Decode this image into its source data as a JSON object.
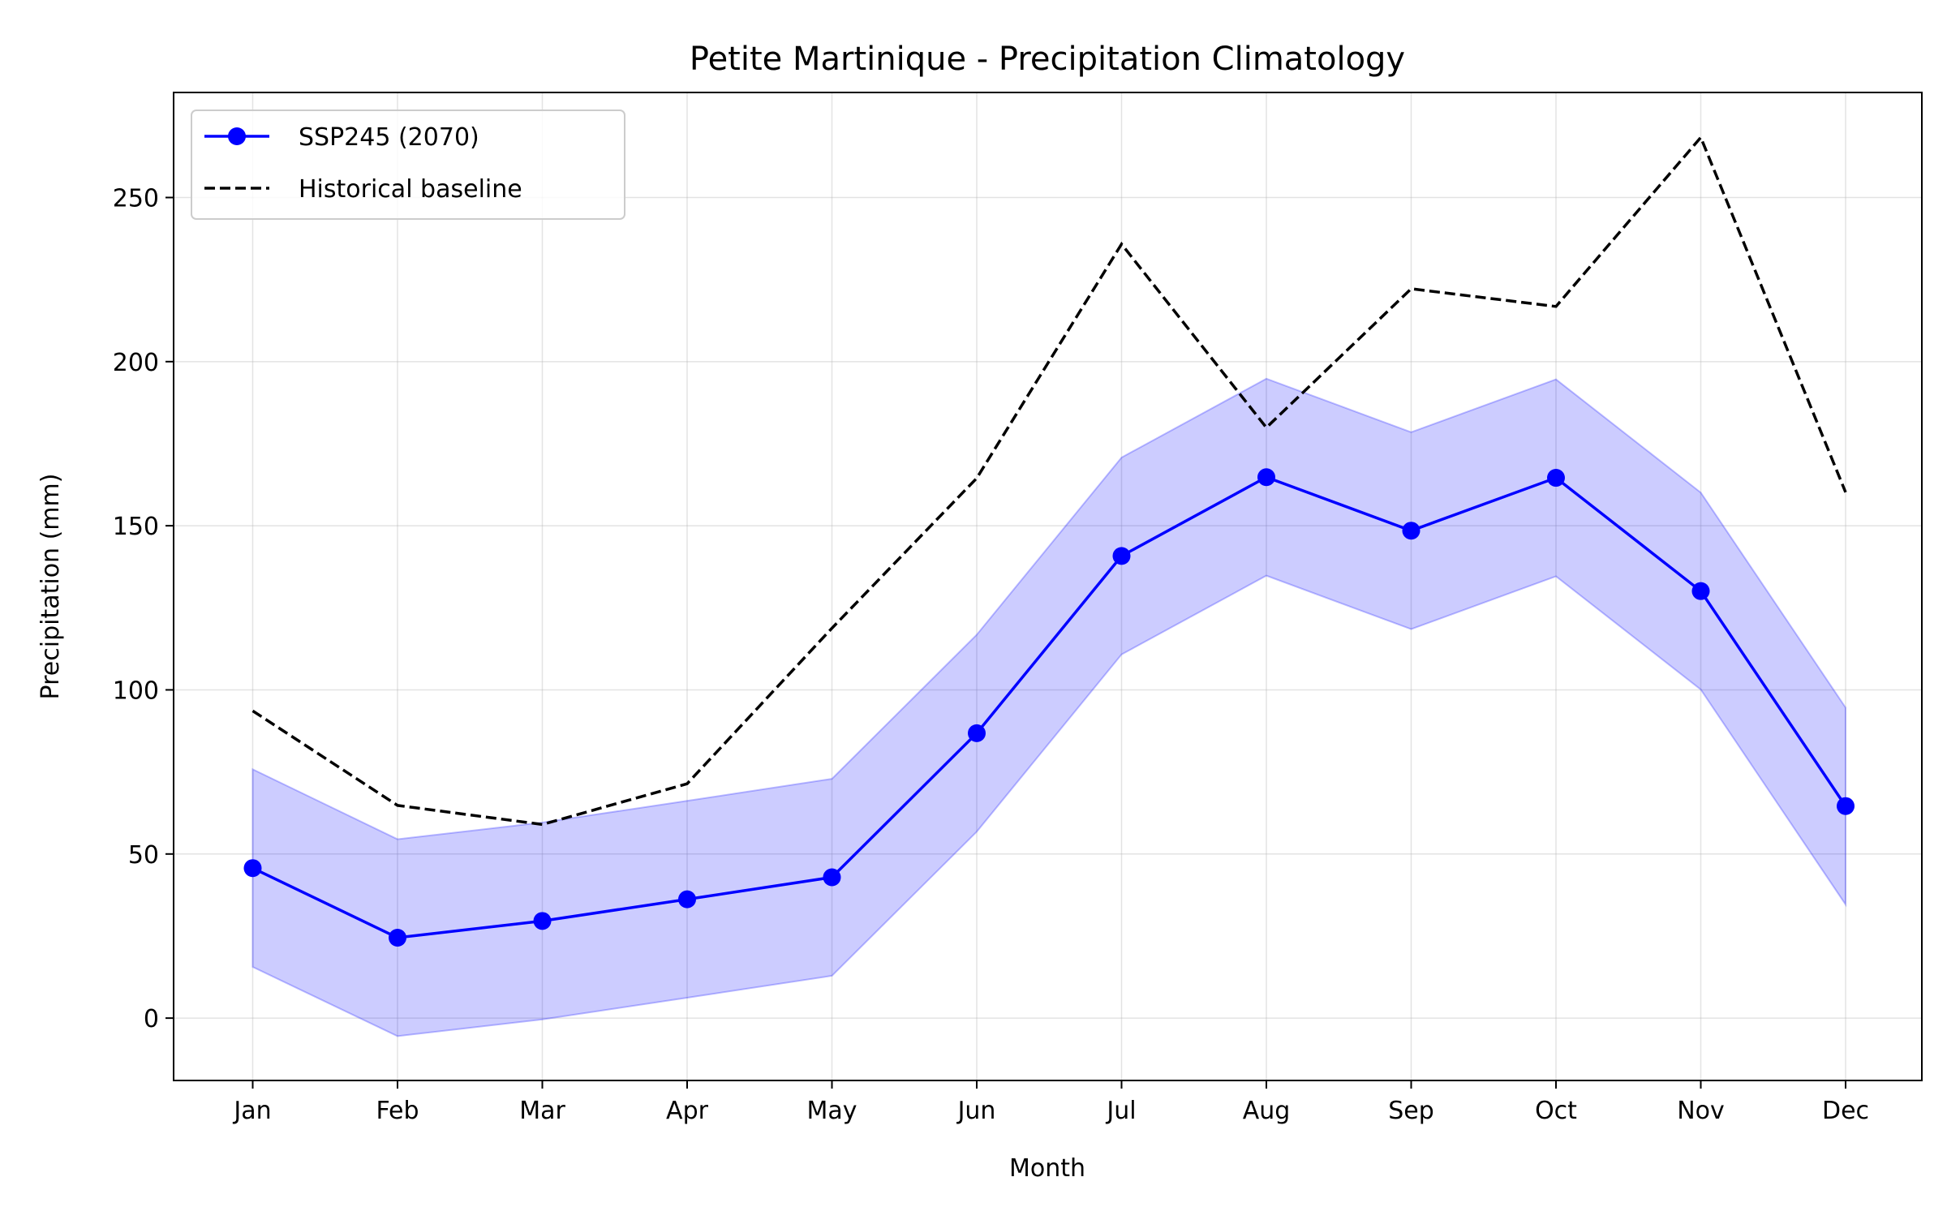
{
  "chart_data": {
    "type": "line",
    "title": "Petite Martinique - Precipitation Climatology",
    "xlabel": "Month",
    "ylabel": "Precipitation (mm)",
    "categories": [
      "Jan",
      "Feb",
      "Mar",
      "Apr",
      "May",
      "Jun",
      "Jul",
      "Aug",
      "Sep",
      "Oct",
      "Nov",
      "Dec"
    ],
    "ylim": [
      -19,
      282
    ],
    "yticks": [
      "0",
      "50",
      "100",
      "150",
      "200",
      "250"
    ],
    "grid": true,
    "legend_position": "upper-left",
    "series": [
      {
        "name": "SSP245 (2070)",
        "color": "#0000ff",
        "style": "solid-with-markers",
        "values": [
          45.7,
          24.5,
          29.6,
          36.2,
          42.9,
          86.8,
          140.8,
          164.8,
          148.5,
          164.6,
          130.1,
          64.6
        ],
        "band_upper": [
          75.8,
          54.5,
          59.6,
          66.2,
          72.9,
          116.8,
          170.8,
          194.8,
          178.5,
          194.6,
          160.1,
          94.6
        ],
        "band_lower": [
          15.6,
          -5.5,
          -0.4,
          6.2,
          12.9,
          56.8,
          110.8,
          134.8,
          118.5,
          134.6,
          100.1,
          34.6
        ]
      },
      {
        "name": "Historical baseline",
        "color": "#000000",
        "style": "dashed",
        "values": [
          93.6,
          64.8,
          59.0,
          71.4,
          118.8,
          164.5,
          235.8,
          179.9,
          222.2,
          216.8,
          268.3,
          160.2
        ]
      }
    ]
  }
}
